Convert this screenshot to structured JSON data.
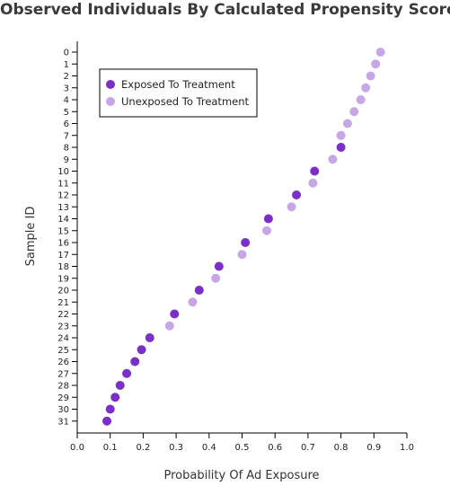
{
  "chart_data": {
    "type": "scatter",
    "title": "Observed Individuals By Calculated Propensity Score",
    "xlabel": "Probability Of Ad Exposure",
    "ylabel": "Sample ID",
    "xlim": [
      0.0,
      1.0
    ],
    "x_ticks": [
      "0.0",
      "0.1",
      "0.2",
      "0.3",
      "0.4",
      "0.5",
      "0.6",
      "0.7",
      "0.8",
      "0.9",
      "1.0"
    ],
    "y_ticks": [
      "0",
      "1",
      "2",
      "3",
      "4",
      "5",
      "6",
      "7",
      "8",
      "9",
      "10",
      "11",
      "12",
      "13",
      "14",
      "15",
      "16",
      "17",
      "18",
      "19",
      "20",
      "21",
      "22",
      "23",
      "24",
      "25",
      "26",
      "27",
      "28",
      "29",
      "30",
      "31"
    ],
    "legend_position": "top-left",
    "grid": false,
    "series": [
      {
        "name": "Exposed To Treatment",
        "color": "#7b2fc9",
        "points": [
          {
            "id": 8,
            "x": 0.8
          },
          {
            "id": 10,
            "x": 0.72
          },
          {
            "id": 12,
            "x": 0.665
          },
          {
            "id": 14,
            "x": 0.58
          },
          {
            "id": 16,
            "x": 0.51
          },
          {
            "id": 18,
            "x": 0.43
          },
          {
            "id": 20,
            "x": 0.37
          },
          {
            "id": 22,
            "x": 0.295
          },
          {
            "id": 24,
            "x": 0.22
          },
          {
            "id": 25,
            "x": 0.195
          },
          {
            "id": 26,
            "x": 0.175
          },
          {
            "id": 27,
            "x": 0.15
          },
          {
            "id": 28,
            "x": 0.13
          },
          {
            "id": 29,
            "x": 0.115
          },
          {
            "id": 30,
            "x": 0.1
          },
          {
            "id": 31,
            "x": 0.09
          }
        ]
      },
      {
        "name": "Unexposed To Treatment",
        "color": "#c7a6e6",
        "points": [
          {
            "id": 0,
            "x": 0.92
          },
          {
            "id": 1,
            "x": 0.905
          },
          {
            "id": 2,
            "x": 0.89
          },
          {
            "id": 3,
            "x": 0.875
          },
          {
            "id": 4,
            "x": 0.86
          },
          {
            "id": 5,
            "x": 0.84
          },
          {
            "id": 6,
            "x": 0.82
          },
          {
            "id": 7,
            "x": 0.8
          },
          {
            "id": 9,
            "x": 0.775
          },
          {
            "id": 11,
            "x": 0.715
          },
          {
            "id": 13,
            "x": 0.65
          },
          {
            "id": 15,
            "x": 0.575
          },
          {
            "id": 17,
            "x": 0.5
          },
          {
            "id": 19,
            "x": 0.42
          },
          {
            "id": 21,
            "x": 0.35
          },
          {
            "id": 23,
            "x": 0.28
          }
        ]
      }
    ]
  }
}
